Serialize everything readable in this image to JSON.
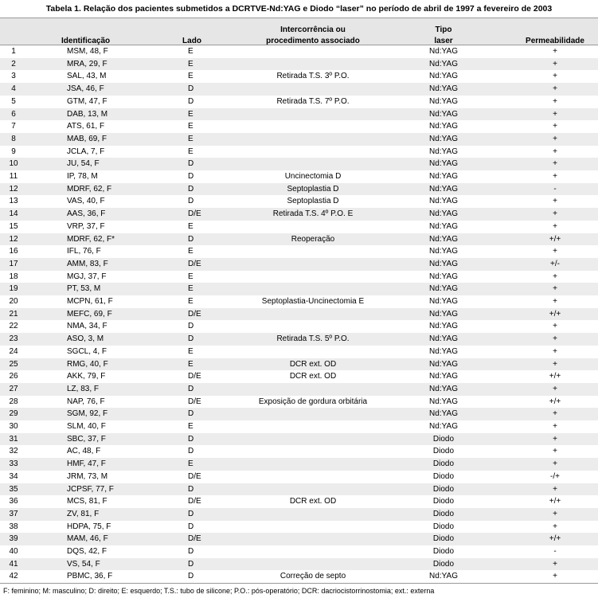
{
  "table": {
    "title": "Tabela 1. Relação dos pacientes submetidos a DCRTVE-Nd:YAG e Diodo “laser” no período de abril de 1997 a fevereiro de 2003",
    "columns": [
      null,
      [
        "Identificação"
      ],
      [
        "Lado"
      ],
      [
        "Intercorrência ou",
        "procedimento associado"
      ],
      [
        "Tipo",
        "laser"
      ],
      [
        "Permeabilidade"
      ]
    ],
    "rows": [
      [
        1,
        "MSM, 48, F",
        "E",
        null,
        "Nd:YAG",
        "+"
      ],
      [
        2,
        "MRA, 29, F",
        "E",
        null,
        "Nd:YAG",
        "+"
      ],
      [
        3,
        "SAL, 43, M",
        "E",
        "Retirada T.S. 3º P.O.",
        "Nd:YAG",
        "+"
      ],
      [
        4,
        "JSA, 46, F",
        "D",
        null,
        "Nd:YAG",
        "+"
      ],
      [
        5,
        "GTM, 47, F",
        "D",
        "Retirada T.S. 7º P.O.",
        "Nd:YAG",
        "+"
      ],
      [
        6,
        "DAB, 13, M",
        "E",
        null,
        "Nd:YAG",
        "+"
      ],
      [
        7,
        "ATS, 61, F",
        "E",
        null,
        "Nd:YAG",
        "+"
      ],
      [
        8,
        "MAB, 69, F",
        "E",
        null,
        "Nd:YAG",
        "+"
      ],
      [
        9,
        "JCLA, 7, F",
        "E",
        null,
        "Nd:YAG",
        "+"
      ],
      [
        10,
        "JU, 54, F",
        "D",
        null,
        "Nd:YAG",
        "+"
      ],
      [
        11,
        "IP, 78, M",
        "D",
        "Uncinectomia D",
        "Nd:YAG",
        "+"
      ],
      [
        12,
        "MDRF, 62, F",
        "D",
        "Septoplastia D",
        "Nd:YAG",
        "-"
      ],
      [
        13,
        "VAS, 40, F",
        "D",
        "Septoplastia D",
        "Nd:YAG",
        "+"
      ],
      [
        14,
        "AAS, 36, F",
        "D/E",
        "Retirada T.S. 4º P.O. E",
        "Nd:YAG",
        "+"
      ],
      [
        15,
        "VRP, 37, F",
        "E",
        null,
        "Nd:YAG",
        "+"
      ],
      [
        12,
        "MDRF, 62, F*",
        "D",
        "Reoperação",
        "Nd:YAG",
        "+/+"
      ],
      [
        16,
        "IFL, 76, F",
        "E",
        null,
        "Nd:YAG",
        "+"
      ],
      [
        17,
        "AMM, 83, F",
        "D/E",
        null,
        "Nd:YAG",
        "+/-"
      ],
      [
        18,
        "MGJ, 37, F",
        "E",
        null,
        "Nd:YAG",
        "+"
      ],
      [
        19,
        "PT, 53, M",
        "E",
        null,
        "Nd:YAG",
        "+"
      ],
      [
        20,
        "MCPN, 61, F",
        "E",
        "Septoplastia-Uncinectomia E",
        "Nd:YAG",
        "+"
      ],
      [
        21,
        "MEFC, 69, F",
        "D/E",
        null,
        "Nd:YAG",
        "+/+"
      ],
      [
        22,
        "NMA, 34, F",
        "D",
        null,
        "Nd:YAG",
        "+"
      ],
      [
        23,
        "ASO, 3, M",
        "D",
        "Retirada T.S. 5º P.O.",
        "Nd:YAG",
        "+"
      ],
      [
        24,
        "SGCL, 4, F",
        "E",
        null,
        "Nd:YAG",
        "+"
      ],
      [
        25,
        "RMG, 40, F",
        "E",
        "DCR ext. OD",
        "Nd:YAG",
        "+"
      ],
      [
        26,
        "AKK, 79, F",
        "D/E",
        "DCR ext. OD",
        "Nd:YAG",
        "+/+"
      ],
      [
        27,
        "LZ, 83, F",
        "D",
        null,
        "Nd:YAG",
        "+"
      ],
      [
        28,
        "NAP, 76, F",
        "D/E",
        "Exposição de gordura orbitária",
        "Nd:YAG",
        "+/+"
      ],
      [
        29,
        "SGM, 92, F",
        "D",
        null,
        "Nd:YAG",
        "+"
      ],
      [
        30,
        "SLM, 40, F",
        "E",
        null,
        "Nd:YAG",
        "+"
      ],
      [
        31,
        "SBC, 37, F",
        "D",
        null,
        "Diodo",
        "+"
      ],
      [
        32,
        "AC, 48, F",
        "D",
        null,
        "Diodo",
        "+"
      ],
      [
        33,
        "HMF, 47, F",
        "E",
        null,
        "Diodo",
        "+"
      ],
      [
        34,
        "JRM, 73, M",
        "D/E",
        null,
        "Diodo",
        "-/+"
      ],
      [
        35,
        "JCPSF, 77, F",
        "D",
        null,
        "Diodo",
        "+"
      ],
      [
        36,
        "MCS, 81, F",
        "D/E",
        "DCR ext. OD",
        "Diodo",
        "+/+"
      ],
      [
        37,
        "ZV, 81, F",
        "D",
        null,
        "Diodo",
        "+"
      ],
      [
        38,
        "HDPA, 75, F",
        "D",
        null,
        "Diodo",
        "+"
      ],
      [
        39,
        "MAM, 46, F",
        "D/E",
        null,
        "Diodo",
        "+/+"
      ],
      [
        40,
        "DQS, 42, F",
        "D",
        null,
        "Diodo",
        "-"
      ],
      [
        41,
        "VS, 54, F",
        "D",
        null,
        "Diodo",
        "+"
      ],
      [
        42,
        "PBMC, 36, F",
        "D",
        "Correção de septo",
        "Nd:YAG",
        "+"
      ]
    ],
    "footnote": "F: feminino; M: masculino; D: direito; E: esquerdo; T.S.:  tubo de silicone; P.O.: pós-operatório; DCR: dacriocistorrinostomia; ext.: externa"
  }
}
